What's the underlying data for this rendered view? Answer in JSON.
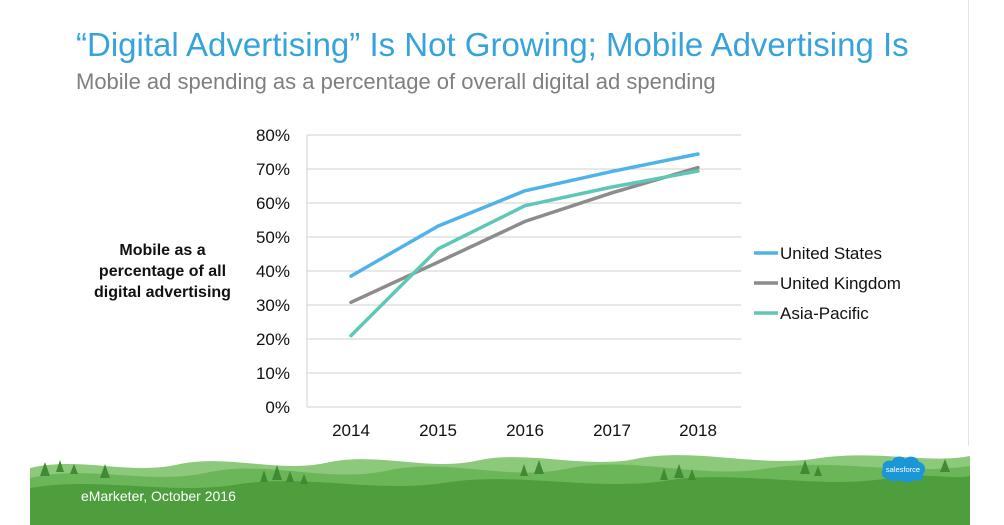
{
  "slide": {
    "title": "“Digital Advertising” Is Not Growing; Mobile Advertising Is",
    "subtitle": "Mobile ad spending as a percentage of overall digital ad spending",
    "source": "eMarketer, October 2016",
    "logo_text": "salesforce"
  },
  "colors": {
    "title": "#36a3dc",
    "united_states": "#4fb3e8",
    "united_kingdom": "#8c8c8c",
    "asia_pacific": "#5fc7b7",
    "footer_green": "#4e9e3e",
    "logo_blue": "#1b96d6"
  },
  "chart_data": {
    "type": "line",
    "ylabel": [
      "Mobile as a",
      "percentage of all",
      "digital advertising"
    ],
    "x": [
      "2014",
      "2015",
      "2016",
      "2017",
      "2018"
    ],
    "ylim": [
      0,
      80
    ],
    "yticks": [
      "0%",
      "10%",
      "20%",
      "30%",
      "40%",
      "50%",
      "60%",
      "70%",
      "80%"
    ],
    "grid": true,
    "legend": "right",
    "series": [
      {
        "name": "United States",
        "color_key": "united_states",
        "values": [
          38.5,
          53.2,
          63.6,
          69.3,
          74.4
        ]
      },
      {
        "name": "United Kingdom",
        "color_key": "united_kingdom",
        "values": [
          30.8,
          42.6,
          54.6,
          63.0,
          70.4
        ]
      },
      {
        "name": "Asia-Pacific",
        "color_key": "asia_pacific",
        "values": [
          21.0,
          46.5,
          59.2,
          64.7,
          69.4
        ]
      }
    ]
  }
}
